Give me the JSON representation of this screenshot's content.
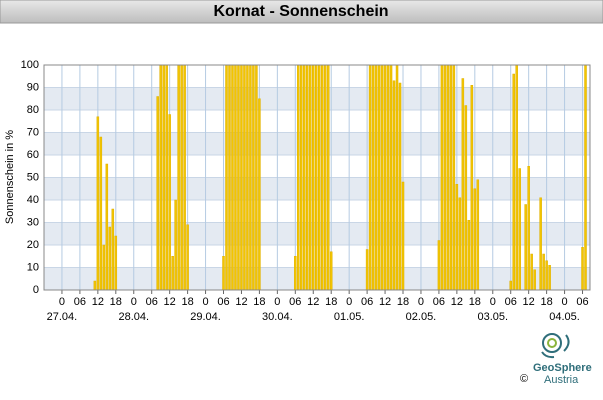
{
  "chart_data": {
    "type": "bar",
    "title": "Kornat - Sonnenschein",
    "y_label": "Sonnenschein in %",
    "color": "#f2c500",
    "grid": true,
    "x": [
      11,
      12,
      13,
      14,
      15,
      16,
      17,
      18,
      32,
      33,
      34,
      35,
      36,
      37,
      38,
      39,
      40,
      41,
      42,
      54,
      55,
      56,
      57,
      58,
      59,
      60,
      61,
      62,
      63,
      64,
      65,
      66,
      78,
      79,
      80,
      81,
      82,
      83,
      84,
      85,
      86,
      87,
      88,
      89,
      90,
      102,
      103,
      104,
      105,
      106,
      107,
      108,
      109,
      110,
      111,
      112,
      113,
      114,
      126,
      127,
      128,
      129,
      130,
      131,
      132,
      133,
      134,
      135,
      136,
      137,
      138,
      139,
      150,
      151,
      152,
      153,
      155,
      156,
      157,
      158,
      160,
      161,
      162,
      163,
      174,
      175
    ],
    "values": [
      4,
      77,
      68,
      20,
      56,
      28,
      36,
      24,
      86,
      100,
      100,
      100,
      78,
      15,
      40,
      100,
      100,
      100,
      29,
      15,
      100,
      100,
      100,
      100,
      100,
      100,
      100,
      100,
      100,
      100,
      100,
      85,
      15,
      100,
      100,
      100,
      100,
      100,
      100,
      100,
      100,
      100,
      100,
      100,
      17,
      18,
      100,
      100,
      100,
      100,
      100,
      100,
      100,
      100,
      93,
      100,
      92,
      48,
      22,
      100,
      100,
      100,
      100,
      100,
      47,
      41,
      94,
      82,
      31,
      91,
      45,
      49,
      4,
      96,
      100,
      54,
      38,
      55,
      16,
      9,
      41,
      16,
      13,
      11,
      19,
      100
    ],
    "xlim": [
      -6,
      176.5
    ],
    "ylim": [
      0,
      100
    ],
    "yticks": [
      0,
      10,
      20,
      30,
      40,
      50,
      60,
      70,
      80,
      90,
      100
    ],
    "xticks": [
      0,
      {
        "value": 6,
        "label": "06"
      },
      {
        "value": 12,
        "label": "12"
      },
      {
        "value": 18,
        "label": "18"
      },
      {
        "value": 24,
        "label": "0"
      },
      {
        "value": 30,
        "label": "06"
      },
      {
        "value": 36,
        "label": "12"
      },
      {
        "value": 42,
        "label": "18"
      },
      {
        "value": 48,
        "label": "0"
      },
      {
        "value": 54,
        "label": "06"
      },
      {
        "value": 60,
        "label": "12"
      },
      {
        "value": 66,
        "label": "18"
      },
      {
        "value": 72,
        "label": "0"
      },
      {
        "value": 78,
        "label": "06"
      },
      {
        "value": 84,
        "label": "12"
      },
      {
        "value": 90,
        "label": "18"
      },
      {
        "value": 96,
        "label": "0"
      },
      {
        "value": 102,
        "label": "06"
      },
      {
        "value": 108,
        "label": "12"
      },
      {
        "value": 114,
        "label": "18"
      },
      {
        "value": 120,
        "label": "0"
      },
      {
        "value": 126,
        "label": "06"
      },
      {
        "value": 132,
        "label": "12"
      },
      {
        "value": 138,
        "label": "18"
      },
      {
        "value": 144,
        "label": "0"
      },
      {
        "value": 150,
        "label": "06"
      },
      {
        "value": 156,
        "label": "12"
      },
      {
        "value": 162,
        "label": "18"
      },
      {
        "value": 168,
        "label": "0"
      },
      {
        "value": 174,
        "label": "06"
      }
    ],
    "x_dates": [
      "27.04.",
      "28.04.",
      "29.04.",
      "30.04.",
      "01.05.",
      "02.05.",
      "03.05.",
      "04.05."
    ]
  },
  "brand": {
    "name": "GeoSphere",
    "sub": "Austria",
    "copyright": "©"
  }
}
